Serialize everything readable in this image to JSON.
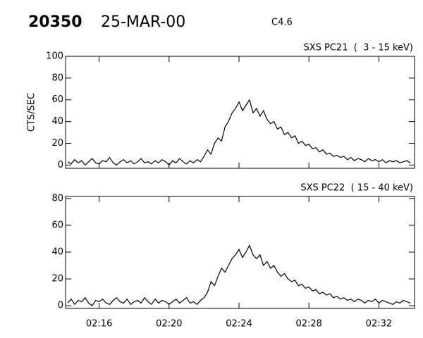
{
  "header": {
    "id": "20350",
    "date": "25-MAR-00",
    "class": "C4.6"
  },
  "chart_data": [
    {
      "type": "line",
      "title": "SXS PC21  (  3 - 15 keV)",
      "ylabel": "CTS/SEC",
      "x": [
        134.2,
        134.4,
        134.6,
        134.8,
        135.0,
        135.2,
        135.4,
        135.6,
        135.8,
        136.0,
        136.2,
        136.4,
        136.6,
        136.8,
        137.0,
        137.2,
        137.4,
        137.6,
        137.8,
        138.0,
        138.2,
        138.4,
        138.6,
        138.8,
        139.0,
        139.2,
        139.4,
        139.6,
        139.8,
        140.0,
        140.2,
        140.4,
        140.6,
        140.8,
        141.0,
        141.2,
        141.4,
        141.6,
        141.8,
        142.0,
        142.2,
        142.4,
        142.6,
        142.8,
        143.0,
        143.2,
        143.4,
        143.6,
        143.8,
        144.0,
        144.2,
        144.4,
        144.6,
        144.8,
        145.0,
        145.2,
        145.4,
        145.6,
        145.8,
        146.0,
        146.2,
        146.4,
        146.6,
        146.8,
        147.0,
        147.2,
        147.4,
        147.6,
        147.8,
        148.0,
        148.2,
        148.4,
        148.6,
        148.8,
        149.0,
        149.2,
        149.4,
        149.6,
        149.8,
        150.0,
        150.2,
        150.4,
        150.6,
        150.8,
        151.0,
        151.2,
        151.4,
        151.6,
        151.8,
        152.0,
        152.2,
        152.4,
        152.6,
        152.8,
        153.0,
        153.2,
        153.4,
        153.6,
        153.8
      ],
      "series": [
        {
          "color": "#000000",
          "values": [
            3,
            1,
            5,
            2,
            4,
            0,
            3,
            6,
            2,
            1,
            4,
            3,
            7,
            2,
            0,
            3,
            5,
            2,
            4,
            1,
            3,
            6,
            2,
            3,
            1,
            4,
            2,
            5,
            3,
            0,
            4,
            2,
            6,
            3,
            1,
            4,
            2,
            5,
            3,
            8,
            14,
            10,
            20,
            25,
            22,
            35,
            40,
            48,
            52,
            58,
            50,
            55,
            60,
            48,
            52,
            45,
            50,
            42,
            38,
            40,
            33,
            35,
            28,
            30,
            25,
            27,
            20,
            22,
            18,
            19,
            15,
            16,
            12,
            14,
            10,
            11,
            8,
            9,
            7,
            8,
            5,
            7,
            4,
            6,
            5,
            3,
            6,
            4,
            5,
            3,
            5,
            2,
            4,
            3,
            4,
            2,
            3,
            4,
            2
          ]
        }
      ],
      "xlim": [
        134.08,
        154.04
      ],
      "xticks": [
        136,
        140,
        144,
        148,
        152
      ],
      "ylim": [
        -3,
        100
      ],
      "yticks": [
        0,
        20,
        40,
        60,
        80,
        100
      ]
    },
    {
      "type": "line",
      "title": "SXS PC22  ( 15 - 40 keV)",
      "x": [
        134.2,
        134.4,
        134.6,
        134.8,
        135.0,
        135.2,
        135.4,
        135.6,
        135.8,
        136.0,
        136.2,
        136.4,
        136.6,
        136.8,
        137.0,
        137.2,
        137.4,
        137.6,
        137.8,
        138.0,
        138.2,
        138.4,
        138.6,
        138.8,
        139.0,
        139.2,
        139.4,
        139.6,
        139.8,
        140.0,
        140.2,
        140.4,
        140.6,
        140.8,
        141.0,
        141.2,
        141.4,
        141.6,
        141.8,
        142.0,
        142.2,
        142.4,
        142.6,
        142.8,
        143.0,
        143.2,
        143.4,
        143.6,
        143.8,
        144.0,
        144.2,
        144.4,
        144.6,
        144.8,
        145.0,
        145.2,
        145.4,
        145.6,
        145.8,
        146.0,
        146.2,
        146.4,
        146.6,
        146.8,
        147.0,
        147.2,
        147.4,
        147.6,
        147.8,
        148.0,
        148.2,
        148.4,
        148.6,
        148.8,
        149.0,
        149.2,
        149.4,
        149.6,
        149.8,
        150.0,
        150.2,
        150.4,
        150.6,
        150.8,
        151.0,
        151.2,
        151.4,
        151.6,
        151.8,
        152.0,
        152.2,
        152.4,
        152.6,
        152.8,
        153.0,
        153.2,
        153.4,
        153.6,
        153.8
      ],
      "series": [
        {
          "color": "#000000",
          "values": [
            2,
            5,
            1,
            4,
            3,
            6,
            2,
            0,
            4,
            3,
            5,
            2,
            1,
            4,
            6,
            3,
            2,
            5,
            1,
            3,
            4,
            2,
            6,
            3,
            1,
            5,
            2,
            4,
            3,
            1,
            3,
            5,
            2,
            4,
            6,
            2,
            3,
            1,
            4,
            6,
            10,
            18,
            15,
            22,
            28,
            25,
            30,
            35,
            38,
            42,
            36,
            40,
            45,
            38,
            35,
            38,
            30,
            33,
            28,
            30,
            25,
            22,
            24,
            20,
            18,
            19,
            15,
            16,
            13,
            14,
            11,
            12,
            9,
            10,
            8,
            9,
            6,
            7,
            5,
            6,
            4,
            5,
            3,
            5,
            4,
            2,
            4,
            3,
            5,
            2,
            4,
            3,
            2,
            1,
            3,
            2,
            4,
            3,
            2
          ]
        }
      ],
      "xlim": [
        134.08,
        154.04
      ],
      "xticks": [
        {
          "value": 136,
          "label": "02:16"
        },
        {
          "value": 140,
          "label": "02:20"
        },
        {
          "value": 144,
          "label": "02:24"
        },
        {
          "value": 148,
          "label": "02:28"
        },
        {
          "value": 152,
          "label": "02:32"
        }
      ],
      "ylim": [
        -2,
        81.5
      ],
      "yticks": [
        0,
        20,
        40,
        60,
        80
      ]
    }
  ]
}
